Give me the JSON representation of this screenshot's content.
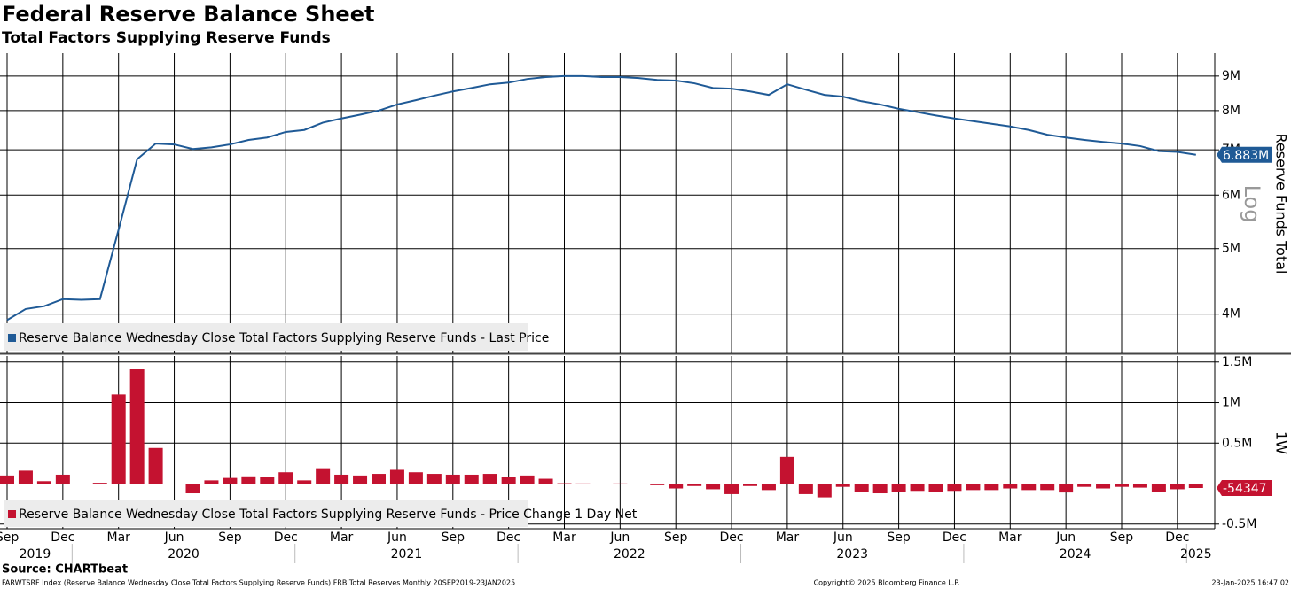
{
  "title": "Federal Reserve Balance Sheet",
  "subtitle": "Total Factors Supplying Reserve Funds",
  "footer": {
    "source": "Source: CHARTbeat",
    "note": "FARWTSRF Index (Reserve Balance Wednesday Close Total Factors Supplying Reserve Funds) FRB Total Reserves  Monthly 20SEP2019-23JAN2025",
    "copyright": "Copyright© 2025 Bloomberg Finance L.P.",
    "timestamp": "23-Jan-2025 16:47:02"
  },
  "chart_data": [
    {
      "type": "line",
      "log": true,
      "grid": true,
      "y_label": "Reserve Funds Total",
      "scale_label": "Log",
      "categories": [
        "2019-09",
        "2019-10",
        "2019-11",
        "2019-12",
        "2020-01",
        "2020-02",
        "2020-03",
        "2020-04",
        "2020-05",
        "2020-06",
        "2020-07",
        "2020-08",
        "2020-09",
        "2020-10",
        "2020-11",
        "2020-12",
        "2021-01",
        "2021-02",
        "2021-03",
        "2021-04",
        "2021-05",
        "2021-06",
        "2021-07",
        "2021-08",
        "2021-09",
        "2021-10",
        "2021-11",
        "2021-12",
        "2022-01",
        "2022-02",
        "2022-03",
        "2022-04",
        "2022-05",
        "2022-06",
        "2022-07",
        "2022-08",
        "2022-09",
        "2022-10",
        "2022-11",
        "2022-12",
        "2023-01",
        "2023-02",
        "2023-03",
        "2023-04",
        "2023-05",
        "2023-06",
        "2023-07",
        "2023-08",
        "2023-09",
        "2023-10",
        "2023-11",
        "2023-12",
        "2024-01",
        "2024-02",
        "2024-03",
        "2024-04",
        "2024-05",
        "2024-06",
        "2024-07",
        "2024-08",
        "2024-09",
        "2024-10",
        "2024-11",
        "2024-12",
        "2025-01"
      ],
      "series": [
        {
          "name": "Reserve Balance Wednesday Close Total Factors Supplying Reserve Funds - Last Price",
          "color": "#1f5a96",
          "values": [
            3920000,
            4070000,
            4110000,
            4210000,
            4200000,
            4210000,
            5330000,
            6780000,
            7150000,
            7130000,
            7020000,
            7060000,
            7130000,
            7240000,
            7300000,
            7440000,
            7490000,
            7680000,
            7790000,
            7890000,
            8000000,
            8170000,
            8290000,
            8420000,
            8540000,
            8640000,
            8750000,
            8800000,
            8910000,
            8970000,
            9000000,
            9000000,
            8970000,
            8970000,
            8940000,
            8880000,
            8860000,
            8780000,
            8640000,
            8620000,
            8540000,
            8440000,
            8750000,
            8590000,
            8440000,
            8390000,
            8260000,
            8170000,
            8050000,
            7960000,
            7870000,
            7790000,
            7720000,
            7650000,
            7580000,
            7490000,
            7370000,
            7300000,
            7240000,
            7190000,
            7150000,
            7090000,
            6970000,
            6950000,
            6883000
          ],
          "value_labels": [
            null,
            null,
            null,
            null,
            null,
            null,
            null,
            null,
            null,
            null,
            null,
            null,
            null,
            null,
            null,
            null,
            null,
            null,
            null,
            null,
            null,
            null,
            null,
            null,
            null,
            null,
            null,
            null,
            null,
            null,
            null,
            null,
            null,
            null,
            null,
            null,
            null,
            null,
            null,
            null,
            null,
            null,
            null,
            null,
            null,
            null,
            null,
            null,
            null,
            null,
            null,
            null,
            null,
            null,
            null,
            null,
            null,
            null,
            null,
            null,
            null,
            null,
            null,
            null,
            "6.883M"
          ]
        }
      ],
      "ylim": [
        3510000,
        9730000
      ],
      "yticks": [
        {
          "value": 4000000,
          "label": "4M"
        },
        {
          "value": 5000000,
          "label": "5M"
        },
        {
          "value": 6000000,
          "label": "6M"
        },
        {
          "value": 7000000,
          "label": "7M"
        },
        {
          "value": 8000000,
          "label": "8M"
        },
        {
          "value": 9000000,
          "label": "9M"
        }
      ]
    },
    {
      "type": "bar",
      "grid": true,
      "y_label": "1W",
      "categories": [
        "2019-09",
        "2019-10",
        "2019-11",
        "2019-12",
        "2020-01",
        "2020-02",
        "2020-03",
        "2020-04",
        "2020-05",
        "2020-06",
        "2020-07",
        "2020-08",
        "2020-09",
        "2020-10",
        "2020-11",
        "2020-12",
        "2021-01",
        "2021-02",
        "2021-03",
        "2021-04",
        "2021-05",
        "2021-06",
        "2021-07",
        "2021-08",
        "2021-09",
        "2021-10",
        "2021-11",
        "2021-12",
        "2022-01",
        "2022-02",
        "2022-03",
        "2022-04",
        "2022-05",
        "2022-06",
        "2022-07",
        "2022-08",
        "2022-09",
        "2022-10",
        "2022-11",
        "2022-12",
        "2023-01",
        "2023-02",
        "2023-03",
        "2023-04",
        "2023-05",
        "2023-06",
        "2023-07",
        "2023-08",
        "2023-09",
        "2023-10",
        "2023-11",
        "2023-12",
        "2024-01",
        "2024-02",
        "2024-03",
        "2024-04",
        "2024-05",
        "2024-06",
        "2024-07",
        "2024-08",
        "2024-09",
        "2024-10",
        "2024-11",
        "2024-12",
        "2025-01"
      ],
      "series": [
        {
          "name": "Reserve Balance Wednesday Close Total Factors Supplying Reserve Funds - Price Change 1 Day Net",
          "color": "#c41230",
          "values": [
            100000,
            160000,
            30000,
            110000,
            -10000,
            10000,
            1100000,
            1410000,
            440000,
            -10000,
            -120000,
            40000,
            70000,
            90000,
            80000,
            140000,
            40000,
            190000,
            110000,
            100000,
            120000,
            170000,
            140000,
            120000,
            110000,
            110000,
            120000,
            80000,
            100000,
            60000,
            5000,
            2000,
            -10000,
            2000,
            -10000,
            -20000,
            -60000,
            -30000,
            -70000,
            -130000,
            -30000,
            -80000,
            330000,
            -130000,
            -170000,
            -40000,
            -100000,
            -120000,
            -100000,
            -90000,
            -100000,
            -90000,
            -80000,
            -80000,
            -60000,
            -80000,
            -80000,
            -110000,
            -40000,
            -60000,
            -40000,
            -50000,
            -100000,
            -70000,
            -54347
          ],
          "value_labels": [
            null,
            null,
            null,
            null,
            null,
            null,
            null,
            null,
            null,
            null,
            null,
            null,
            null,
            null,
            null,
            null,
            null,
            null,
            null,
            null,
            null,
            null,
            null,
            null,
            null,
            null,
            null,
            null,
            null,
            null,
            null,
            null,
            null,
            null,
            null,
            null,
            null,
            null,
            null,
            null,
            null,
            null,
            null,
            null,
            null,
            null,
            null,
            null,
            null,
            null,
            null,
            null,
            null,
            null,
            null,
            null,
            null,
            null,
            null,
            null,
            null,
            null,
            null,
            null,
            "-54347"
          ]
        }
      ],
      "ylim": [
        -557000,
        1574000
      ],
      "yticks": [
        {
          "value": -500000,
          "label": "-0.5M"
        },
        {
          "value": 500000,
          "label": "0.5M"
        },
        {
          "value": 1000000,
          "label": "1M"
        },
        {
          "value": 1500000,
          "label": "1.5M"
        }
      ],
      "xticks": [
        {
          "value": "2019-09",
          "label": "Sep"
        },
        {
          "value": "2019-12",
          "label": "Dec"
        },
        {
          "value": "2020-03",
          "label": "Mar"
        },
        {
          "value": "2020-06",
          "label": "Jun"
        },
        {
          "value": "2020-09",
          "label": "Sep"
        },
        {
          "value": "2020-12",
          "label": "Dec"
        },
        {
          "value": "2021-03",
          "label": "Mar"
        },
        {
          "value": "2021-06",
          "label": "Jun"
        },
        {
          "value": "2021-09",
          "label": "Sep"
        },
        {
          "value": "2021-12",
          "label": "Dec"
        },
        {
          "value": "2022-03",
          "label": "Mar"
        },
        {
          "value": "2022-06",
          "label": "Jun"
        },
        {
          "value": "2022-09",
          "label": "Sep"
        },
        {
          "value": "2022-12",
          "label": "Dec"
        },
        {
          "value": "2023-03",
          "label": "Mar"
        },
        {
          "value": "2023-06",
          "label": "Jun"
        },
        {
          "value": "2023-09",
          "label": "Sep"
        },
        {
          "value": "2023-12",
          "label": "Dec"
        },
        {
          "value": "2024-03",
          "label": "Mar"
        },
        {
          "value": "2024-06",
          "label": "Jun"
        },
        {
          "value": "2024-09",
          "label": "Sep"
        },
        {
          "value": "2024-12",
          "label": "Dec"
        }
      ],
      "year_ticks": [
        {
          "value": "2019-09",
          "label": "2019"
        },
        {
          "value": "2020-01",
          "label": "2020"
        },
        {
          "value": "2021-01",
          "label": "2021"
        },
        {
          "value": "2022-01",
          "label": "2022"
        },
        {
          "value": "2023-01",
          "label": "2023"
        },
        {
          "value": "2024-01",
          "label": "2024"
        },
        {
          "value": "2025-01",
          "label": "2025"
        }
      ]
    }
  ]
}
